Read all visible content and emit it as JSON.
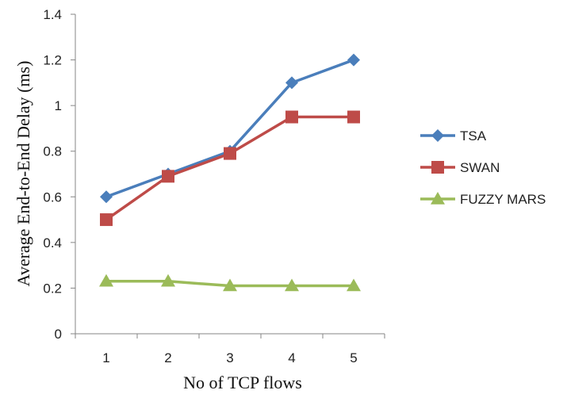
{
  "chart_data": {
    "type": "line",
    "title": "",
    "xlabel": "No of TCP flows",
    "ylabel": "Average End-to-End Delay (ms)",
    "categories": [
      "1",
      "2",
      "3",
      "4",
      "5"
    ],
    "ylim": [
      0,
      1.4
    ],
    "yticks": [
      "0",
      "0.2",
      "0.4",
      "0.6",
      "0.8",
      "1",
      "1.2",
      "1.4"
    ],
    "grid": false,
    "legend_position": "right",
    "series": [
      {
        "name": "TSA",
        "values": [
          0.6,
          0.7,
          0.8,
          1.1,
          1.2
        ],
        "color": "#4A7EBB",
        "marker": "diamond"
      },
      {
        "name": "SWAN",
        "values": [
          0.5,
          0.69,
          0.79,
          0.95,
          0.95
        ],
        "color": "#BE4B48",
        "marker": "square"
      },
      {
        "name": "FUZZY MARS",
        "values": [
          0.23,
          0.23,
          0.21,
          0.21,
          0.21
        ],
        "color": "#9BBB59",
        "marker": "triangle"
      }
    ]
  }
}
